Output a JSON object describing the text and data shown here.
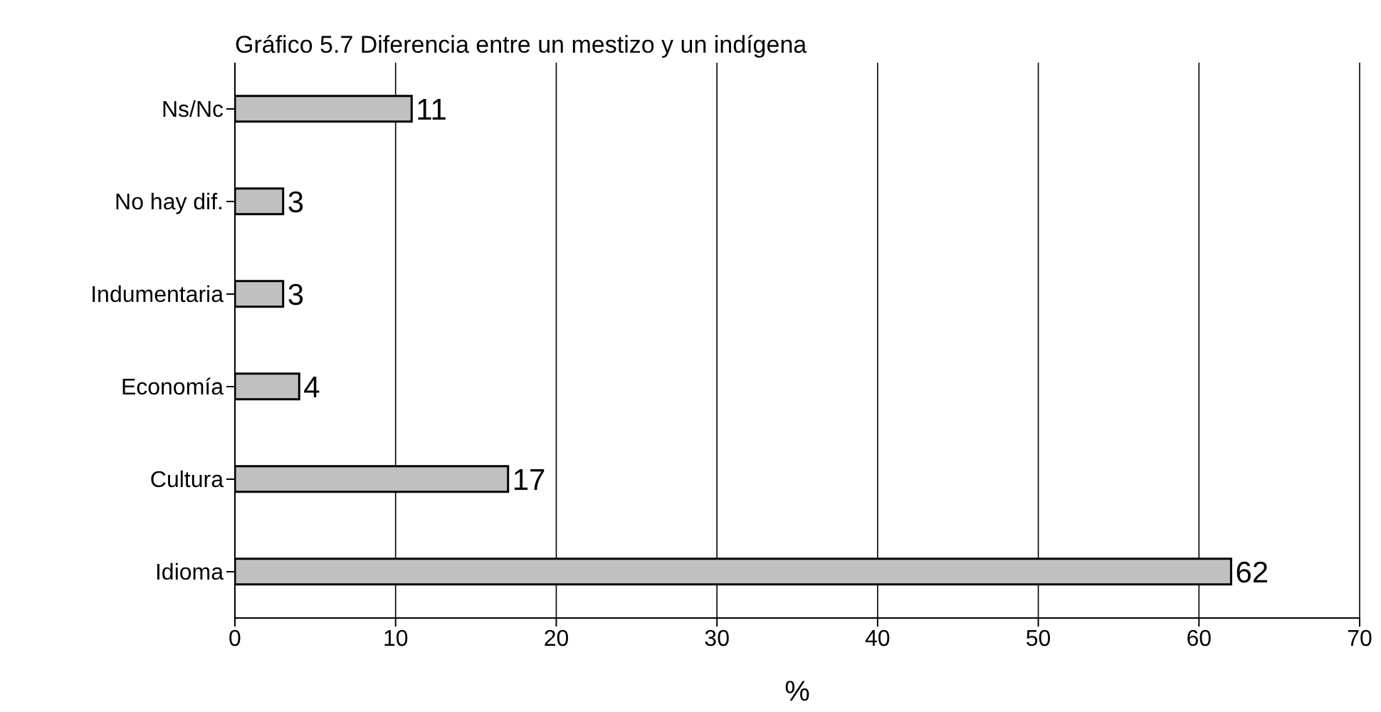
{
  "chart_data": {
    "type": "bar",
    "orientation": "horizontal",
    "title": "Gráfico 5.7 Diferencia entre un mestizo y un indígena",
    "xlabel": "%",
    "categories": [
      "Ns/Nc",
      "No hay dif.",
      "Indumentaria",
      "Economía",
      "Cultura",
      "Idioma"
    ],
    "values": [
      11,
      3,
      3,
      4,
      17,
      62
    ],
    "color": "#c0c0c0",
    "xlim": [
      0,
      70
    ],
    "xticks": [
      0,
      10,
      20,
      30,
      40,
      50,
      60,
      70
    ],
    "grid": "x",
    "data_labels": true,
    "legend": false
  }
}
